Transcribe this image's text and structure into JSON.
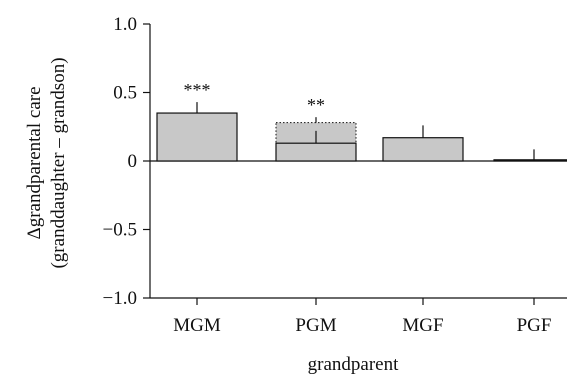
{
  "chart_data": {
    "type": "bar",
    "categories": [
      "MGM",
      "PGM",
      "MGF",
      "PGF"
    ],
    "values": [
      0.35,
      0.13,
      0.17,
      0.005
    ],
    "errors": [
      0.08,
      0.09,
      0.09,
      0.08
    ],
    "overlay": {
      "category": "PGM",
      "value": 0.28,
      "error": 0.04,
      "style": "dotted-outline",
      "label": "**"
    },
    "significance": [
      "***",
      "",
      "",
      ""
    ],
    "xlabel": "grandparent",
    "ylabel_lines": [
      "Δgrandparental care",
      "(granddaughter – grandson)"
    ],
    "ylim": [
      -1.0,
      1.0
    ],
    "yticks": [
      -1.0,
      -0.5,
      0,
      0.5,
      1.0
    ],
    "ytick_labels": [
      "−1.0",
      "−0.5",
      "0",
      "0.5",
      "1.0"
    ],
    "bar_color": "#c8c8c8",
    "grid": false,
    "legend": "none"
  }
}
